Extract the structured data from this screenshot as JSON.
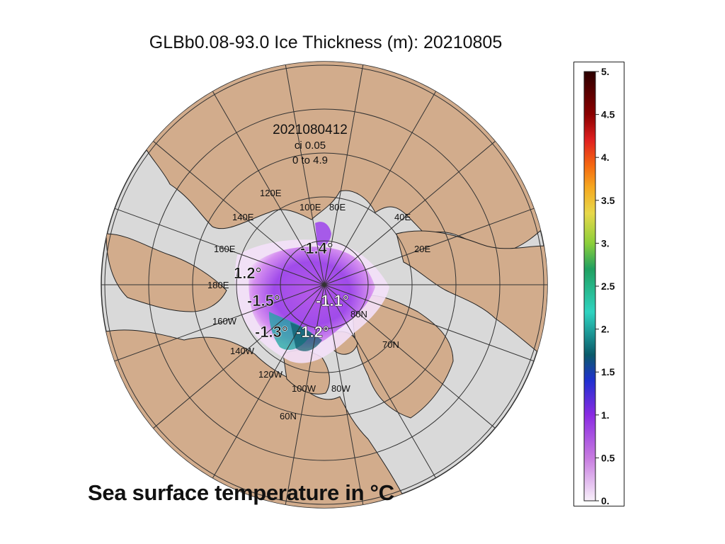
{
  "title": "GLBb0.08-93.0 Ice Thickness (m): 20210805",
  "caption": "Sea surface temperature in °C",
  "map": {
    "run_stamp": "2021080412",
    "contour_interval": "ci 0.05",
    "range_text": "0 to 4.9",
    "colors": {
      "land": "#d2ac8c",
      "ocean": "#d9d9d9",
      "grid": "#333333",
      "coast": "#222222"
    },
    "longitude_labels": [
      "120E",
      "140E",
      "160E",
      "180E",
      "160W",
      "140W",
      "120W",
      "100W",
      "80W",
      "100E",
      "80E",
      "40E",
      "20E"
    ],
    "latitude_labels": [
      "80N",
      "70N",
      "60N"
    ],
    "sst_labels": [
      "-1.4°",
      "1.2°",
      "-1.5°",
      "-1.1°",
      "-1.3°",
      "-1.2°"
    ]
  },
  "colorbar": {
    "ticks": [
      "5.",
      "4.5",
      "4.",
      "3.5",
      "3.",
      "2.5",
      "2.",
      "1.5",
      "1.",
      "0.5",
      "0."
    ],
    "colors_top_to_bottom": [
      "#2b0000",
      "#8b0000",
      "#e02020",
      "#f56a10",
      "#f5a820",
      "#e8d84a",
      "#8ccf3a",
      "#20a060",
      "#2fd3c0",
      "#0a5a6a",
      "#2030d0",
      "#8a2be2",
      "#c77be0",
      "#f8f0fa"
    ]
  }
}
